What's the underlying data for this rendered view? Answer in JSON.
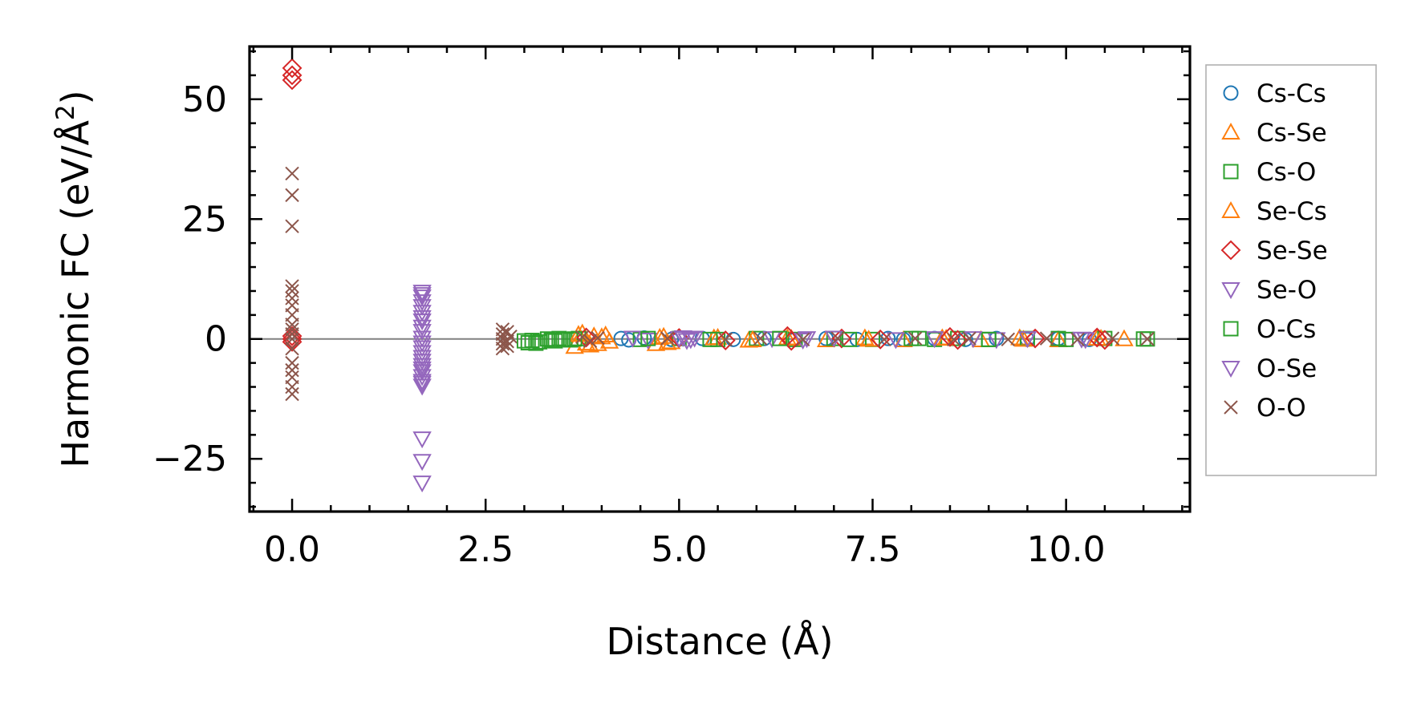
{
  "chart_data": {
    "type": "scatter",
    "title": "",
    "xlabel": "Distance (Å)",
    "ylabel": "Harmonic FC (eV/Å",
    "ylabel_superscript": "2",
    "ylabel_close": ")",
    "xlim": [
      -0.55,
      11.6
    ],
    "ylim": [
      -36,
      61
    ],
    "xticks": [
      0.0,
      2.5,
      5.0,
      7.5,
      10.0
    ],
    "xtick_labels": [
      "0.0",
      "2.5",
      "5.0",
      "7.5",
      "10.0"
    ],
    "yticks": [
      -25,
      0,
      25,
      50
    ],
    "ytick_labels": [
      "−25",
      "0",
      "25",
      "50"
    ],
    "reference_line_y": 0,
    "legend_position": "outside-right",
    "series": [
      {
        "name": "Cs-Cs",
        "marker": "circle",
        "color": "#1f77b4",
        "points": [
          [
            4.25,
            0.1
          ],
          [
            4.35,
            -0.2
          ],
          [
            4.55,
            0.2
          ],
          [
            4.9,
            -0.1
          ],
          [
            5.3,
            0.1
          ],
          [
            5.7,
            -0.1
          ],
          [
            6.1,
            0.1
          ],
          [
            6.5,
            -0.1
          ],
          [
            6.9,
            0.1
          ],
          [
            7.3,
            -0.1
          ],
          [
            7.7,
            0.1
          ],
          [
            7.9,
            -0.1
          ],
          [
            8.3,
            0.1
          ],
          [
            8.7,
            -0.1
          ],
          [
            9.1,
            0.1
          ],
          [
            9.5,
            -0.1
          ],
          [
            9.9,
            0.1
          ],
          [
            10.3,
            -0.1
          ]
        ]
      },
      {
        "name": "Cs-Se",
        "marker": "triangle-up",
        "color": "#ff7f0e",
        "points": [
          [
            3.65,
            -1.6
          ],
          [
            3.75,
            1.2
          ],
          [
            3.8,
            -0.9
          ],
          [
            3.9,
            0.6
          ],
          [
            3.95,
            -1.0
          ],
          [
            4.0,
            0.4
          ],
          [
            4.1,
            -0.5
          ],
          [
            4.7,
            -1.0
          ],
          [
            4.8,
            0.5
          ],
          [
            4.9,
            -0.6
          ],
          [
            5.5,
            0.3
          ],
          [
            5.9,
            -0.3
          ],
          [
            6.4,
            0.2
          ],
          [
            6.9,
            -0.2
          ],
          [
            7.4,
            0.2
          ],
          [
            7.9,
            -0.2
          ],
          [
            8.4,
            0.2
          ],
          [
            8.9,
            -0.2
          ],
          [
            9.4,
            0.2
          ],
          [
            9.9,
            -0.2
          ],
          [
            10.4,
            0.1
          ],
          [
            10.75,
            0.0
          ]
        ]
      },
      {
        "name": "Cs-O",
        "marker": "square",
        "color": "#2ca02c",
        "points": [
          [
            3.05,
            -0.8
          ],
          [
            3.1,
            -0.3
          ],
          [
            3.2,
            -0.6
          ],
          [
            3.3,
            0.0
          ],
          [
            3.4,
            -0.4
          ],
          [
            3.45,
            0.1
          ],
          [
            3.6,
            -0.2
          ],
          [
            3.7,
            0.1
          ],
          [
            4.5,
            -0.1
          ],
          [
            5.0,
            0.1
          ],
          [
            5.5,
            -0.1
          ],
          [
            6.0,
            0.1
          ],
          [
            6.5,
            -0.1
          ],
          [
            7.0,
            0.1
          ],
          [
            7.5,
            -0.1
          ],
          [
            8.0,
            0.1
          ],
          [
            8.3,
            -0.1
          ],
          [
            8.6,
            0.1
          ],
          [
            9.0,
            -0.1
          ],
          [
            9.5,
            0.1
          ],
          [
            10.0,
            -0.1
          ],
          [
            10.5,
            0.1
          ],
          [
            11.05,
            0.0
          ]
        ]
      },
      {
        "name": "Se-Cs",
        "marker": "triangle-up",
        "color": "#ff7f0e",
        "points": [
          [
            3.7,
            0.9
          ],
          [
            3.85,
            -1.3
          ],
          [
            4.05,
            0.8
          ],
          [
            4.75,
            0.3
          ],
          [
            4.85,
            -0.8
          ],
          [
            5.45,
            0.2
          ],
          [
            5.95,
            -0.2
          ],
          [
            6.45,
            0.1
          ],
          [
            7.45,
            -0.1
          ],
          [
            8.45,
            0.1
          ],
          [
            9.45,
            -0.1
          ],
          [
            10.45,
            0.1
          ]
        ]
      },
      {
        "name": "Se-Se",
        "marker": "diamond",
        "color": "#d62728",
        "points": [
          [
            0.0,
            56.5
          ],
          [
            0.0,
            55.0
          ],
          [
            0.0,
            54.0
          ],
          [
            0.0,
            0.6
          ],
          [
            0.0,
            -0.6
          ],
          [
            0.0,
            0.0
          ],
          [
            3.8,
            0.3
          ],
          [
            5.0,
            0.2
          ],
          [
            5.6,
            -0.3
          ],
          [
            6.4,
            0.6
          ],
          [
            6.45,
            -0.4
          ],
          [
            7.1,
            0.1
          ],
          [
            7.6,
            -0.1
          ],
          [
            8.5,
            0.4
          ],
          [
            8.6,
            -0.2
          ],
          [
            9.6,
            0.1
          ],
          [
            10.4,
            0.3
          ],
          [
            10.5,
            -0.2
          ]
        ]
      },
      {
        "name": "Se-O",
        "marker": "triangle-down",
        "color": "#9467bd",
        "points": [
          [
            1.68,
            9.8
          ],
          [
            1.68,
            8.8
          ],
          [
            1.68,
            7.8
          ],
          [
            1.68,
            5.6
          ],
          [
            1.68,
            3.8
          ],
          [
            1.68,
            1.6
          ],
          [
            1.68,
            0.2
          ],
          [
            1.68,
            -1.8
          ],
          [
            1.68,
            -3.8
          ],
          [
            1.68,
            -5.5
          ],
          [
            1.68,
            -6.8
          ],
          [
            1.68,
            -7.8
          ],
          [
            1.68,
            -8.8
          ],
          [
            1.68,
            -9.8
          ],
          [
            1.68,
            -20.8
          ],
          [
            1.68,
            -25.5
          ],
          [
            1.68,
            -30.0
          ],
          [
            4.4,
            0.2
          ],
          [
            4.6,
            -0.2
          ],
          [
            5.05,
            0.3
          ],
          [
            5.1,
            -0.3
          ],
          [
            5.2,
            0.2
          ],
          [
            6.2,
            0.1
          ],
          [
            6.6,
            -0.2
          ],
          [
            7.0,
            0.2
          ],
          [
            8.3,
            0.1
          ],
          [
            9.1,
            -0.1
          ],
          [
            9.5,
            0.1
          ],
          [
            10.2,
            0.0
          ]
        ]
      },
      {
        "name": "O-Cs",
        "marker": "square",
        "color": "#2ca02c",
        "points": [
          [
            3.0,
            -0.4
          ],
          [
            3.15,
            -0.9
          ],
          [
            3.35,
            -0.3
          ],
          [
            3.5,
            -0.1
          ],
          [
            3.65,
            0.0
          ],
          [
            4.6,
            0.1
          ],
          [
            5.4,
            -0.1
          ],
          [
            6.3,
            0.1
          ],
          [
            7.2,
            -0.1
          ],
          [
            8.1,
            0.1
          ],
          [
            9.0,
            -0.1
          ],
          [
            9.9,
            0.1
          ],
          [
            11.0,
            0.0
          ]
        ]
      },
      {
        "name": "O-Se",
        "marker": "triangle-down",
        "color": "#9467bd",
        "points": [
          [
            1.68,
            9.3
          ],
          [
            1.68,
            6.8
          ],
          [
            1.68,
            4.5
          ],
          [
            1.68,
            2.5
          ],
          [
            1.68,
            -0.8
          ],
          [
            1.68,
            -2.8
          ],
          [
            1.68,
            -4.6
          ],
          [
            1.68,
            -6.2
          ],
          [
            1.68,
            -9.2
          ],
          [
            5.0,
            0.1
          ],
          [
            5.15,
            -0.1
          ],
          [
            6.65,
            0.1
          ],
          [
            7.8,
            -0.1
          ],
          [
            8.8,
            0.1
          ],
          [
            10.25,
            -0.1
          ]
        ]
      },
      {
        "name": "O-O",
        "marker": "x",
        "color": "#8c564b",
        "points": [
          [
            0.0,
            34.5
          ],
          [
            0.0,
            30.0
          ],
          [
            0.0,
            23.5
          ],
          [
            0.0,
            11.0
          ],
          [
            0.0,
            10.0
          ],
          [
            0.0,
            8.5
          ],
          [
            0.0,
            7.0
          ],
          [
            0.0,
            5.0
          ],
          [
            0.0,
            3.0
          ],
          [
            0.0,
            2.0
          ],
          [
            0.0,
            1.0
          ],
          [
            0.0,
            0.0
          ],
          [
            0.0,
            -2.0
          ],
          [
            0.0,
            -5.0
          ],
          [
            0.0,
            -6.5
          ],
          [
            0.0,
            -8.0
          ],
          [
            0.0,
            -10.0
          ],
          [
            0.0,
            -11.5
          ],
          [
            2.72,
            2.0
          ],
          [
            2.72,
            1.0
          ],
          [
            2.72,
            0.0
          ],
          [
            2.72,
            -1.0
          ],
          [
            2.72,
            -2.0
          ],
          [
            2.78,
            1.5
          ],
          [
            2.78,
            -0.5
          ],
          [
            2.78,
            -1.5
          ],
          [
            2.82,
            0.5
          ],
          [
            3.75,
            0.4
          ],
          [
            3.85,
            -0.4
          ],
          [
            3.95,
            0.2
          ],
          [
            4.85,
            0.1
          ],
          [
            5.6,
            -0.1
          ],
          [
            6.05,
            0.1
          ],
          [
            6.6,
            -0.1
          ],
          [
            7.05,
            0.1
          ],
          [
            7.65,
            -0.1
          ],
          [
            8.05,
            0.1
          ],
          [
            8.55,
            -0.1
          ],
          [
            8.75,
            0.1
          ],
          [
            9.25,
            -0.1
          ],
          [
            9.75,
            0.1
          ],
          [
            10.15,
            -0.1
          ],
          [
            10.6,
            0.1
          ],
          [
            11.05,
            0.0
          ]
        ]
      }
    ]
  }
}
